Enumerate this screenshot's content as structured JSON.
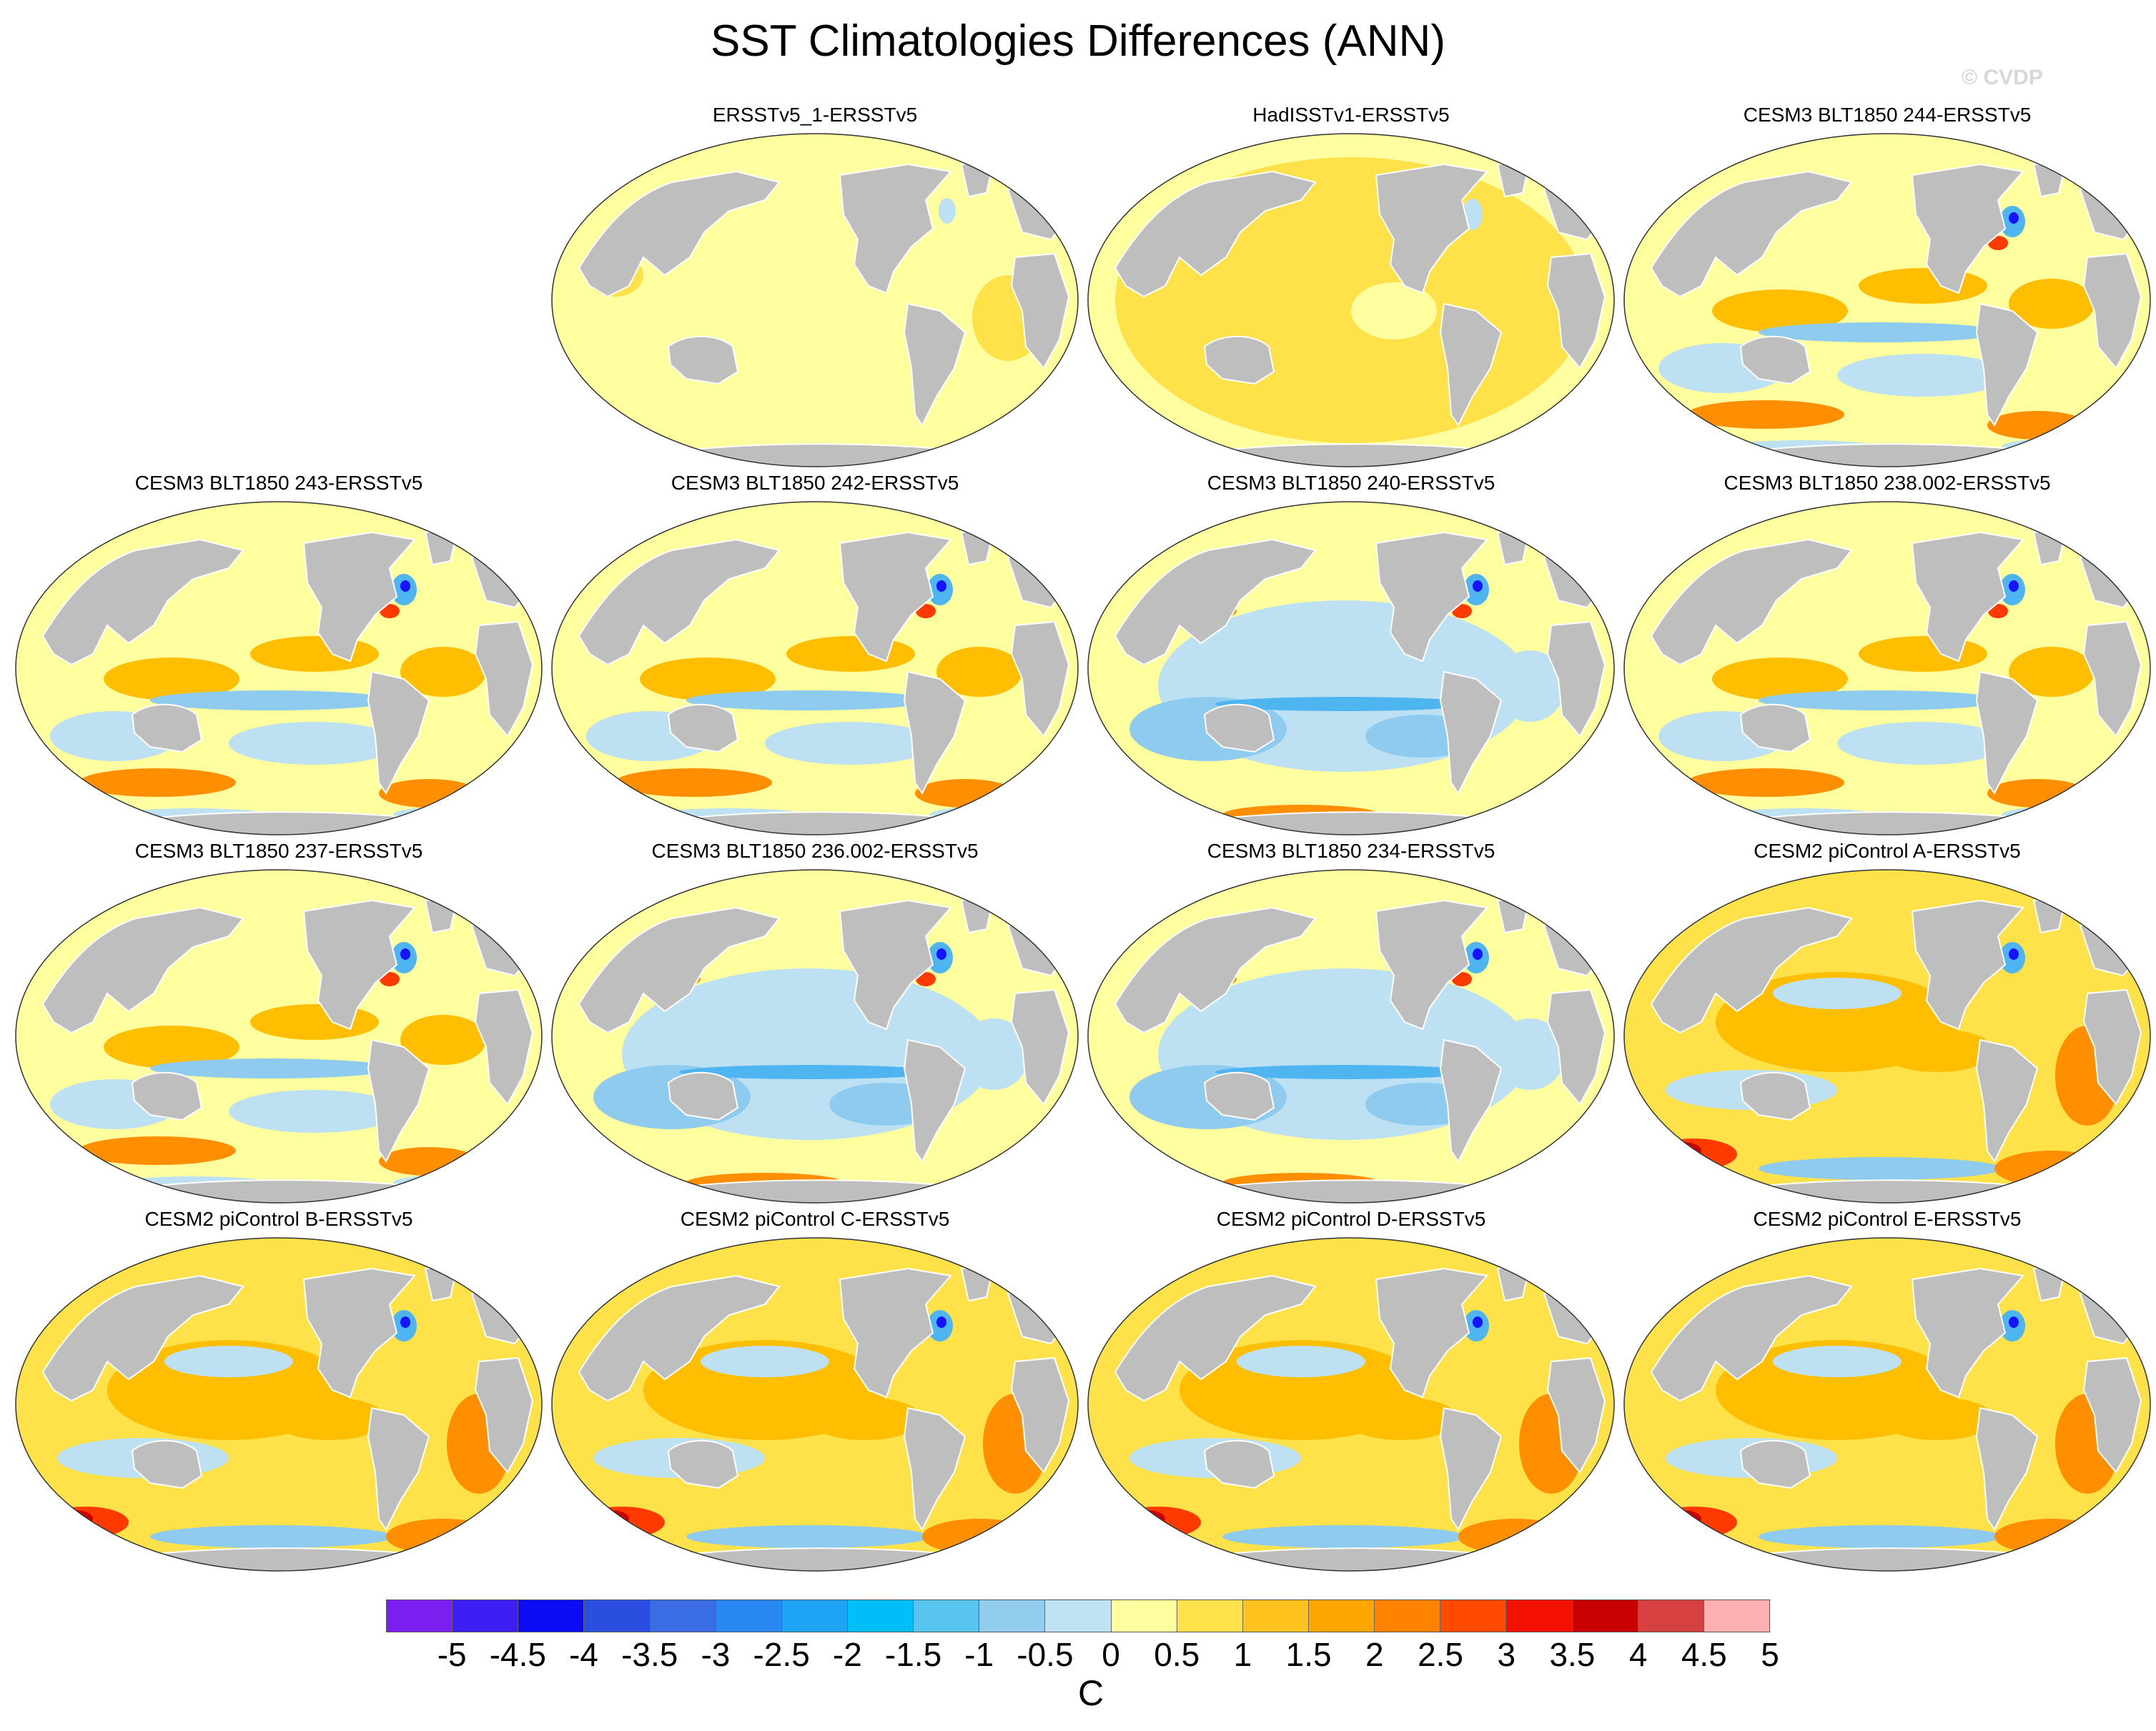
{
  "title": "SST Climatologies Differences (ANN)",
  "watermark": "© CVDP",
  "colors": {
    "land": "#bebebe",
    "ocean_base": "#ffff9f",
    "warm_1": "#ffe14a",
    "warm_2": "#ffbf00",
    "warm_3": "#ff8f00",
    "warm_4": "#ff3a00",
    "warm_5": "#cc0000",
    "cool_1": "#bde1f2",
    "cool_2": "#8ecbef",
    "cool_3": "#4fb5f0",
    "cool_4": "#1d7df2",
    "cool_5": "#1414ff"
  },
  "panels": [
    {
      "title": "ERSSTv5_1-ERSSTv5",
      "pattern": "neutral"
    },
    {
      "title": "HadISSTv1-ERSSTv5",
      "pattern": "slightwarm"
    },
    {
      "title": "CESM3 BLT1850 244-ERSSTv5",
      "pattern": "mixed"
    },
    {
      "title": "CESM3 BLT1850 243-ERSSTv5",
      "pattern": "mixed"
    },
    {
      "title": "CESM3 BLT1850 242-ERSSTv5",
      "pattern": "mixed"
    },
    {
      "title": "CESM3 BLT1850 240-ERSSTv5",
      "pattern": "cool"
    },
    {
      "title": "CESM3 BLT1850 238.002-ERSSTv5",
      "pattern": "mixed"
    },
    {
      "title": "CESM3 BLT1850 237-ERSSTv5",
      "pattern": "mixed"
    },
    {
      "title": "CESM3 BLT1850 236.002-ERSSTv5",
      "pattern": "cool"
    },
    {
      "title": "CESM3 BLT1850 234-ERSSTv5",
      "pattern": "cool"
    },
    {
      "title": "CESM2 piControl A-ERSSTv5",
      "pattern": "warm"
    },
    {
      "title": "CESM2 piControl B-ERSSTv5",
      "pattern": "warm"
    },
    {
      "title": "CESM2 piControl C-ERSSTv5",
      "pattern": "warm"
    },
    {
      "title": "CESM2 piControl D-ERSSTv5",
      "pattern": "warm"
    },
    {
      "title": "CESM2 piControl E-ERSSTv5",
      "pattern": "warm"
    }
  ],
  "colorbar": {
    "unit": "C",
    "labels": [
      "-5",
      "-4.5",
      "-4",
      "-3.5",
      "-3",
      "-2.5",
      "-2",
      "-1.5",
      "-1",
      "-0.5",
      "0",
      "0.5",
      "1",
      "1.5",
      "2",
      "2.5",
      "3",
      "3.5",
      "4",
      "4.5",
      "5"
    ],
    "colors": [
      "#7a1ff0",
      "#3c1ef2",
      "#0b0bf5",
      "#2a4fe0",
      "#3a6de6",
      "#2a88f2",
      "#1fa4f5",
      "#00bff8",
      "#58c5f0",
      "#93cdee",
      "#bfe2f4",
      "#ffff9f",
      "#ffe14a",
      "#ffc21e",
      "#ffa600",
      "#ff8200",
      "#ff4a00",
      "#f41000",
      "#c80000",
      "#d64040",
      "#ffb0b0"
    ]
  }
}
